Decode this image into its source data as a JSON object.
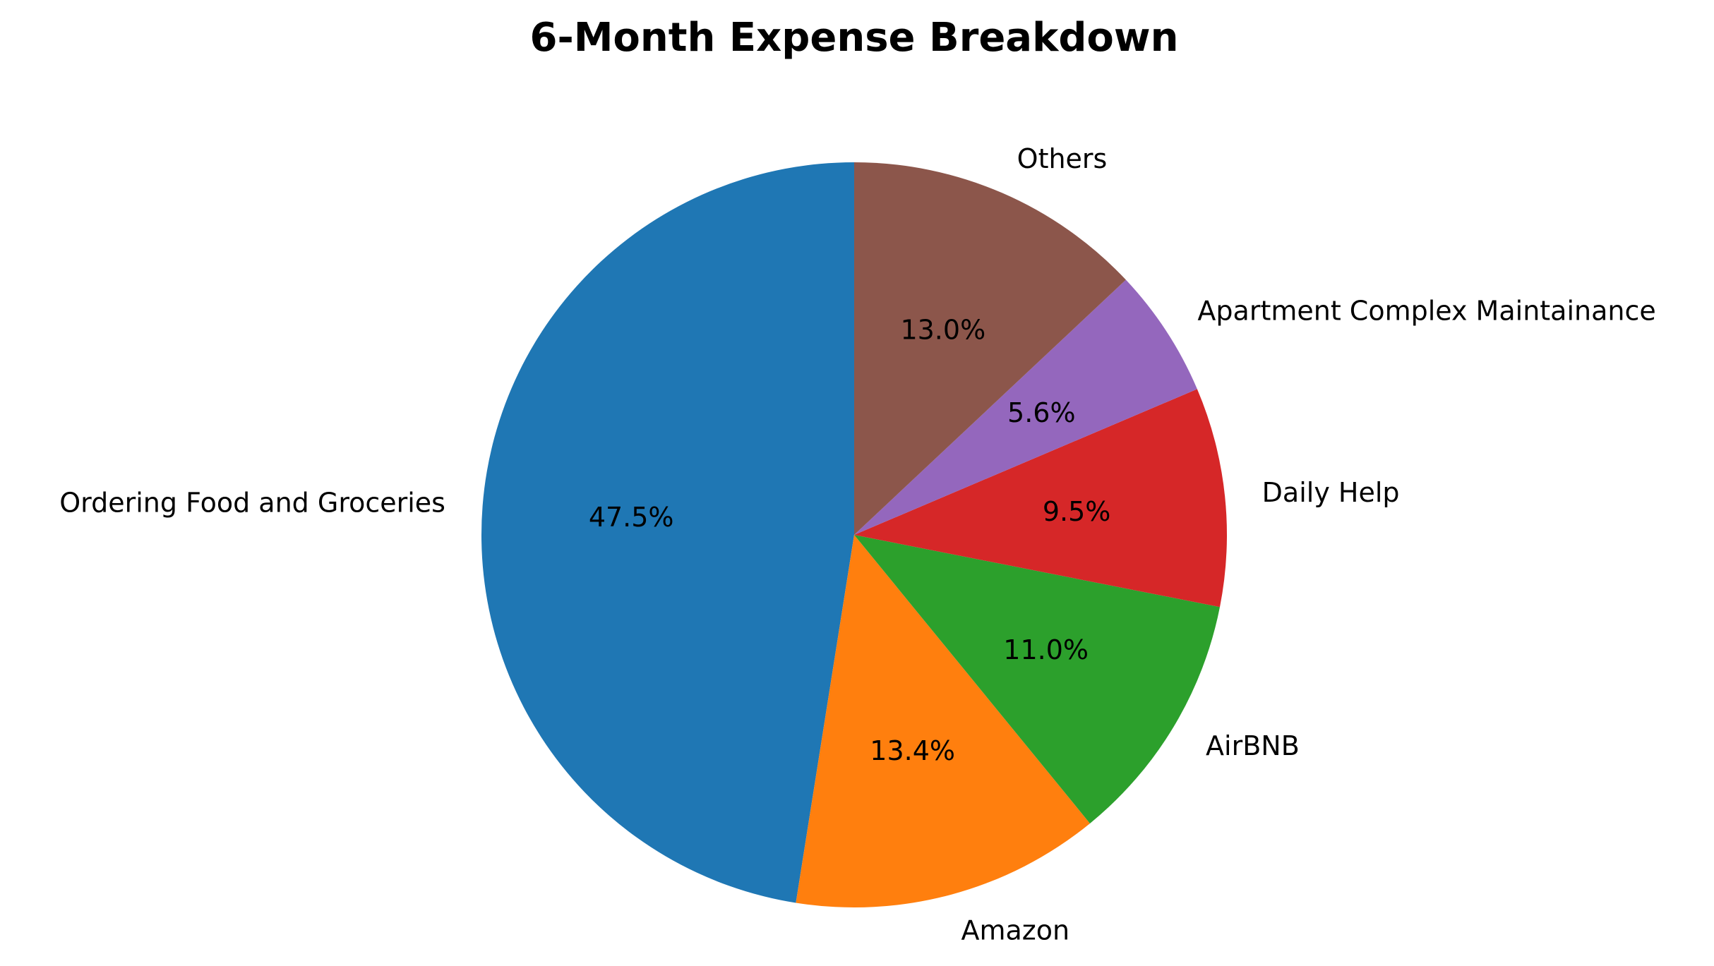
{
  "chart_data": {
    "type": "pie",
    "title": "6-Month Expense Breakdown",
    "start_angle_deg": 90,
    "direction": "counterclockwise",
    "slices": [
      {
        "label": "Ordering Food and Groceries",
        "percent": 47.5,
        "pct_text": "47.5%",
        "color": "#1f77b4"
      },
      {
        "label": "Amazon",
        "percent": 13.4,
        "pct_text": "13.4%",
        "color": "#ff7f0e"
      },
      {
        "label": "AirBNB",
        "percent": 11.0,
        "pct_text": "11.0%",
        "color": "#2ca02c"
      },
      {
        "label": "Daily Help",
        "percent": 9.5,
        "pct_text": "9.5%",
        "color": "#d62728"
      },
      {
        "label": "Apartment Complex Maintainance",
        "percent": 5.6,
        "pct_text": "5.6%",
        "color": "#9467bd"
      },
      {
        "label": "Others",
        "percent": 13.0,
        "pct_text": "13.0%",
        "color": "#8c564b"
      }
    ]
  }
}
